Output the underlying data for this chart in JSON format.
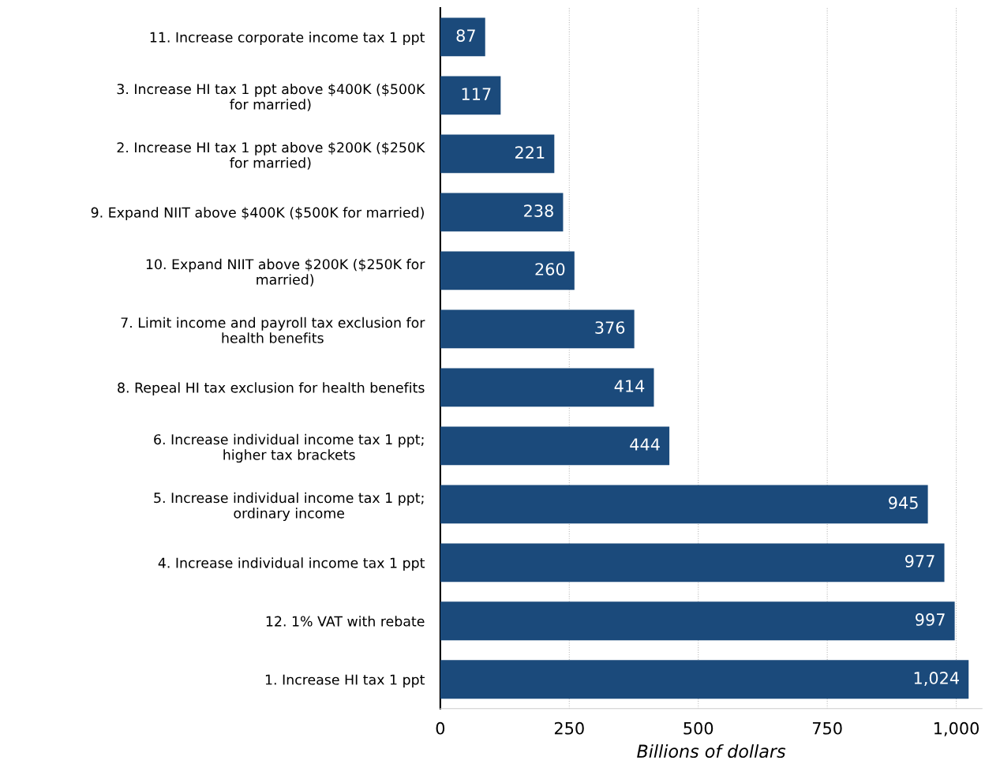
{
  "chart_data": {
    "type": "bar",
    "orientation": "horizontal",
    "xlabel": "Billions of dollars",
    "categories": [
      "11. Increase corporate income tax 1 ppt",
      "3. Increase HI tax 1 ppt above $400K ($500K for married)",
      "2. Increase HI tax 1 ppt above $200K ($250K for married)",
      "9. Expand NIIT above $400K ($500K for married)",
      "10. Expand NIIT above $200K ($250K for married)",
      "7. Limit income and payroll tax exclusion for health benefits",
      "8. Repeal HI tax exclusion for health benefits",
      "6. Increase individual income tax 1 ppt; higher tax brackets",
      "5. Increase individual income tax 1 ppt; ordinary income",
      "4. Increase individual income tax 1 ppt",
      "12. 1% VAT with rebate",
      "1. Increase HI tax 1 ppt"
    ],
    "values": [
      87,
      117,
      221,
      238,
      260,
      376,
      414,
      444,
      945,
      977,
      997,
      1024
    ],
    "value_labels": [
      "87",
      "117",
      "221",
      "238",
      "260",
      "376",
      "414",
      "444",
      "945",
      "977",
      "997",
      "1,024"
    ],
    "color": "#1b4a7b",
    "xlim": [
      0,
      1050
    ],
    "xticks": [
      0,
      250,
      500,
      750,
      {
        "value": 1000,
        "label": "1,000"
      }
    ],
    "grid": "x"
  }
}
